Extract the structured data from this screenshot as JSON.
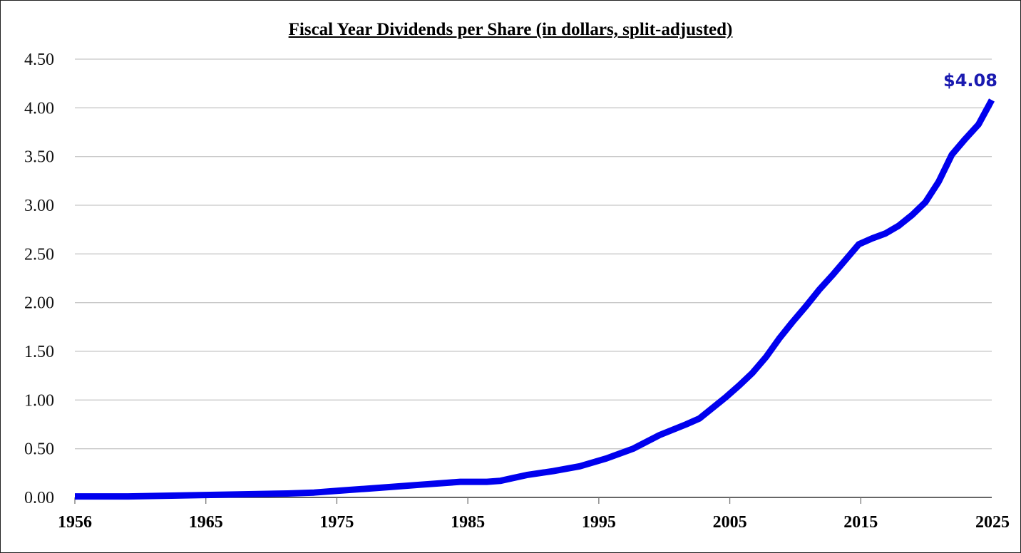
{
  "chart_data": {
    "type": "line",
    "title": "Fiscal Year Dividends per Share (in dollars, split-adjusted)",
    "xlabel": "",
    "ylabel": "",
    "ylim": [
      0,
      4.5
    ],
    "xlim": [
      1956,
      2025
    ],
    "grid": true,
    "legend": "none",
    "y_ticks": [
      "0.00",
      "0.50",
      "1.00",
      "1.50",
      "2.00",
      "2.50",
      "3.00",
      "3.50",
      "4.00",
      "4.50"
    ],
    "x_ticks": [
      "1956",
      "1965",
      "1975",
      "1985",
      "1995",
      "2005",
      "2015",
      "2025"
    ],
    "series": [
      {
        "name": "Dividends per Share",
        "color": "#0000ee",
        "x": [
          1956,
          1960,
          1964,
          1968,
          1972,
          1974,
          1976,
          1978,
          1980,
          1982,
          1984,
          1985,
          1987,
          1988,
          1989,
          1990,
          1991,
          1992,
          1994,
          1996,
          1998,
          1999,
          2000,
          2002,
          2003,
          2004,
          2005,
          2006,
          2007,
          2008,
          2009,
          2010,
          2011,
          2012,
          2013,
          2014,
          2015,
          2016,
          2017,
          2018,
          2019,
          2020,
          2021,
          2022,
          2023,
          2024,
          2025
        ],
        "values": [
          0.01,
          0.01,
          0.02,
          0.03,
          0.04,
          0.05,
          0.07,
          0.09,
          0.11,
          0.13,
          0.15,
          0.16,
          0.16,
          0.17,
          0.2,
          0.23,
          0.25,
          0.27,
          0.32,
          0.4,
          0.5,
          0.57,
          0.64,
          0.75,
          0.81,
          0.92,
          1.03,
          1.15,
          1.28,
          1.44,
          1.63,
          1.8,
          1.96,
          2.13,
          2.28,
          2.44,
          2.6,
          2.66,
          2.71,
          2.79,
          2.9,
          3.03,
          3.24,
          3.52,
          3.68,
          3.83,
          4.08
        ]
      }
    ],
    "annotations": [
      {
        "text": "$4.08",
        "x": 2025,
        "y": 4.08,
        "color": "#1a1ab0"
      }
    ]
  },
  "labels": {
    "title": "Fiscal Year Dividends per Share (in dollars, split-adjusted)",
    "last_value": "$4.08"
  }
}
